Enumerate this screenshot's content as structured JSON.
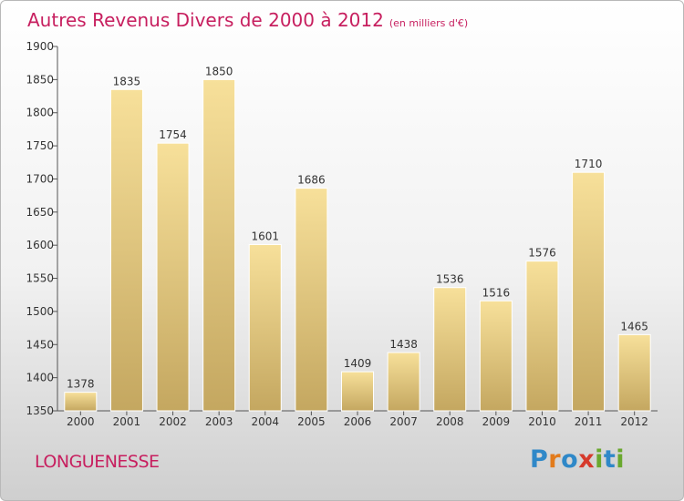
{
  "header": {
    "title": "Autres Revenus Divers de 2000 à 2012",
    "unit": "(en milliers d'€)"
  },
  "footer": {
    "city": "LONGUENESSE",
    "logo_text": "Proxiti",
    "logo_colors": [
      "#2f88c8",
      "#e27b1c",
      "#2f88c8",
      "#d63a2c",
      "#6aa82e",
      "#2f88c8",
      "#6aa82e"
    ]
  },
  "colors": {
    "accent": "#c71f5f",
    "bar_light": "#f7e09a",
    "bar_dark": "#c4a760",
    "axis": "#555555"
  },
  "chart_data": {
    "type": "bar",
    "title": "Autres Revenus Divers de 2000 à 2012",
    "subtitle": "(en milliers d'€)",
    "xlabel": "",
    "ylabel": "",
    "categories": [
      "2000",
      "2001",
      "2002",
      "2003",
      "2004",
      "2005",
      "2006",
      "2007",
      "2008",
      "2009",
      "2010",
      "2011",
      "2012"
    ],
    "values": [
      1378,
      1835,
      1754,
      1850,
      1601,
      1686,
      1409,
      1438,
      1536,
      1516,
      1576,
      1710,
      1465
    ],
    "ylim": [
      1350,
      1900
    ],
    "yticks": [
      1350,
      1400,
      1450,
      1500,
      1550,
      1600,
      1650,
      1700,
      1750,
      1800,
      1850,
      1900
    ],
    "grid": false,
    "legend": "none"
  }
}
